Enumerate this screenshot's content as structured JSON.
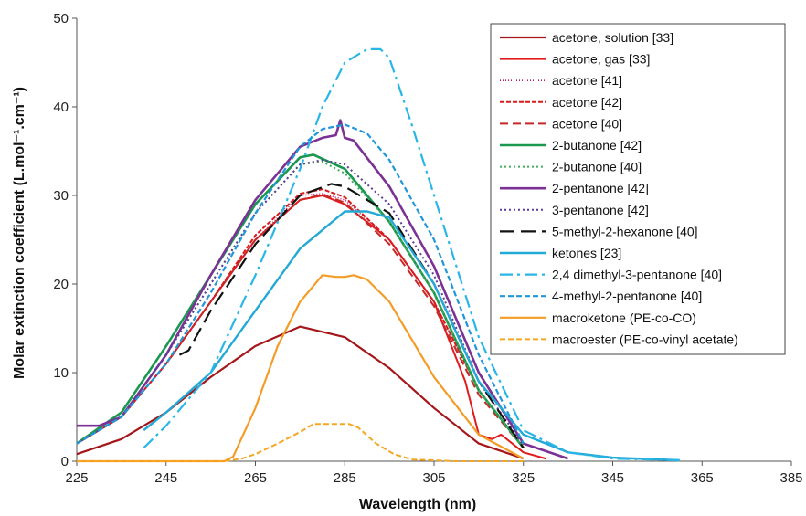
{
  "chart_data": {
    "type": "line",
    "title": "",
    "xlabel": "Wavelength (nm)",
    "ylabel": "Molar extinction coefficient (L.mol⁻¹.cm⁻¹)",
    "xlim": [
      225,
      385
    ],
    "ylim": [
      0,
      50
    ],
    "xticks": [
      225,
      245,
      265,
      285,
      305,
      325,
      345,
      365,
      385
    ],
    "yticks": [
      0,
      10,
      20,
      30,
      40,
      50
    ],
    "grid": false,
    "legend_position": "top-right",
    "series": [
      {
        "name": "acetone, solution [33]",
        "color": "#a4161a",
        "dash": "solid",
        "width": 2.2,
        "x": [
          225,
          235,
          245,
          255,
          265,
          275,
          285,
          295,
          305,
          315,
          325
        ],
        "y": [
          0.8,
          2.5,
          5.5,
          9.5,
          13,
          15.2,
          14,
          10.5,
          6,
          2,
          0.3
        ]
      },
      {
        "name": "acetone, gas [33]",
        "color": "#e31a1c",
        "dash": "solid",
        "width": 2,
        "x": [
          225,
          235,
          245,
          255,
          265,
          275,
          280,
          285,
          295,
          305,
          312,
          315,
          318,
          320,
          325,
          330
        ],
        "y": [
          2,
          5,
          11,
          18,
          25,
          29.5,
          30,
          29,
          25,
          18,
          9,
          3,
          2.5,
          3,
          1,
          0.3
        ]
      },
      {
        "name": "acetone [41]",
        "color": "#c2185b",
        "dash": "1,2",
        "width": 1.6,
        "x": [
          225,
          235,
          245,
          255,
          265,
          275,
          280,
          285,
          295,
          305,
          315,
          325
        ],
        "y": [
          2,
          5,
          11,
          18,
          25,
          30,
          30.2,
          29.5,
          25,
          18,
          8,
          1.5
        ]
      },
      {
        "name": "acetone [42]",
        "color": "#d81b1b",
        "dash": "5,2",
        "width": 2,
        "x": [
          225,
          235,
          245,
          255,
          265,
          275,
          280,
          285,
          295,
          305,
          315,
          325
        ],
        "y": [
          2,
          5,
          11,
          18,
          25.5,
          30.2,
          30.7,
          29.8,
          25,
          18,
          8,
          1.5
        ]
      },
      {
        "name": "acetone [40]",
        "color": "#c62828",
        "dash": "9,5",
        "width": 2,
        "x": [
          225,
          235,
          245,
          255,
          265,
          275,
          280,
          285,
          295,
          305,
          315,
          325
        ],
        "y": [
          2,
          5,
          11,
          18,
          25,
          29.5,
          30.1,
          29.2,
          24.5,
          17.5,
          7.5,
          1.5
        ]
      },
      {
        "name": "2-butanone [42]",
        "color": "#1a9850",
        "dash": "solid",
        "width": 2.6,
        "x": [
          225,
          235,
          245,
          255,
          265,
          275,
          278,
          285,
          295,
          305,
          315,
          325
        ],
        "y": [
          2,
          5.5,
          13,
          21,
          29,
          34.3,
          34.6,
          33,
          27,
          19,
          8,
          1.5
        ]
      },
      {
        "name": "2-butanone [40]",
        "color": "#41ab5d",
        "dash": "2,3",
        "width": 2,
        "x": [
          225,
          235,
          245,
          255,
          265,
          275,
          280,
          285,
          295,
          305,
          315,
          325
        ],
        "y": [
          2,
          5,
          12,
          20,
          28,
          33.5,
          33.8,
          32.5,
          27,
          19,
          8,
          1.5
        ]
      },
      {
        "name": "2-pentanone [42]",
        "color": "#7b3294",
        "dash": "solid",
        "width": 2.6,
        "x": [
          225,
          230,
          235,
          245,
          255,
          265,
          275,
          280,
          283,
          284,
          285,
          287,
          295,
          305,
          315,
          325,
          335
        ],
        "y": [
          4,
          4,
          5,
          12,
          21,
          29.5,
          35.5,
          36.5,
          36.8,
          38.5,
          36.5,
          36.2,
          31,
          22,
          10,
          2,
          0.3
        ]
      },
      {
        "name": "3-pentanone [42]",
        "color": "#5e3c99",
        "dash": "2,3",
        "width": 2,
        "x": [
          225,
          235,
          245,
          255,
          265,
          275,
          280,
          285,
          295,
          305,
          315,
          325
        ],
        "y": [
          2,
          5,
          12,
          20,
          28,
          33.5,
          34,
          33.5,
          29,
          21,
          9,
          1.8
        ]
      },
      {
        "name": "5-methyl-2-hexanone [40]",
        "color": "#111111",
        "dash": "16,7",
        "width": 2.2,
        "x": [
          248,
          250,
          255,
          265,
          275,
          282,
          285,
          295,
          305,
          315,
          325
        ],
        "y": [
          12,
          12.5,
          17,
          24.5,
          30,
          31.3,
          31,
          28,
          20,
          9,
          1.5
        ]
      },
      {
        "name": "ketones [23]",
        "color": "#23a9d6",
        "dash": "solid",
        "width": 2.4,
        "x": [
          240,
          245,
          255,
          265,
          275,
          285,
          290,
          295,
          305,
          315,
          325,
          335,
          345,
          360
        ],
        "y": [
          3.5,
          5.5,
          10,
          17,
          24,
          28.2,
          28.2,
          27.5,
          20,
          9,
          3,
          1,
          0.4,
          0.1
        ]
      },
      {
        "name": "2,4 dimethyl-3-pentanone [40]",
        "color": "#29b6e6",
        "dash": "14,5,3,5",
        "width": 2.2,
        "x": [
          240,
          245,
          255,
          265,
          275,
          280,
          285,
          290,
          293,
          295,
          300,
          305,
          315,
          325,
          335,
          345,
          360
        ],
        "y": [
          1.5,
          4,
          10,
          21,
          33,
          40,
          45,
          46.5,
          46.5,
          45.5,
          38,
          30,
          14,
          3.5,
          1,
          0.3,
          0.1
        ]
      },
      {
        "name": "4-methyl-2-pentanone [40]",
        "color": "#2196d8",
        "dash": "6,3",
        "width": 2.2,
        "x": [
          225,
          235,
          245,
          255,
          265,
          275,
          280,
          285,
          290,
          295,
          305,
          315,
          325
        ],
        "y": [
          2,
          5,
          11,
          19,
          28,
          35.5,
          37.5,
          38,
          37,
          34,
          25,
          12,
          2
        ]
      },
      {
        "name": "macroketone (PE-co-CO)",
        "color": "#f39c26",
        "dash": "solid",
        "width": 2.2,
        "x": [
          225,
          258,
          260,
          265,
          270,
          275,
          280,
          283,
          285,
          287,
          290,
          295,
          305,
          315,
          325
        ],
        "y": [
          0,
          0,
          0.5,
          6,
          13,
          18,
          21,
          20.8,
          20.8,
          21,
          20.5,
          18,
          9.5,
          3,
          0.3
        ]
      },
      {
        "name": "macroester (PE-co-vinyl acetate)",
        "color": "#f5a623",
        "dash": "6,3",
        "width": 2,
        "x": [
          225,
          258,
          262,
          265,
          270,
          275,
          278,
          282,
          286,
          288,
          292,
          296,
          300,
          310,
          325
        ],
        "y": [
          0,
          0,
          0.3,
          0.8,
          2,
          3.3,
          4.2,
          4.2,
          4.2,
          3.8,
          2,
          0.8,
          0.2,
          0,
          0
        ]
      }
    ]
  }
}
